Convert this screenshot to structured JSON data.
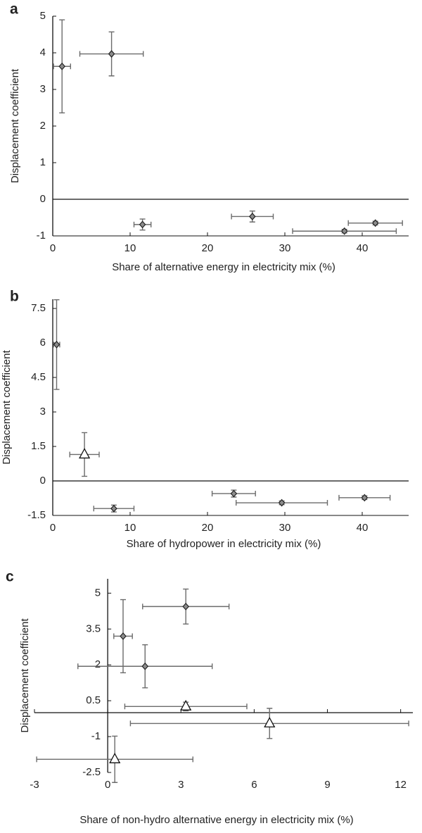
{
  "chart_data": [
    {
      "type": "scatter",
      "label": "a",
      "xlabel": "Share of alternative energy in electricity mix (%)",
      "ylabel": "Displacement coefficient",
      "xlim": [
        0,
        46
      ],
      "ylim": [
        -1,
        5
      ],
      "xticks": [
        0,
        10,
        20,
        30,
        40
      ],
      "yticks": [
        -1,
        0,
        1,
        2,
        3,
        4,
        5
      ],
      "series": [
        {
          "marker": "diamond",
          "color": "#8c8c8c",
          "x": [
            1.2,
            7.6,
            11.6,
            25.8,
            37.7,
            41.7
          ],
          "y": [
            3.63,
            3.97,
            -0.69,
            -0.47,
            -0.87,
            -0.65
          ],
          "xerr": [
            1.1,
            4.1,
            1.1,
            2.7,
            6.7,
            3.5
          ],
          "yerr": [
            1.27,
            0.6,
            0.15,
            0.15,
            0.05,
            0.05
          ]
        }
      ]
    },
    {
      "type": "scatter",
      "label": "b",
      "xlabel": "Share of hydropower in electricity mix (%)",
      "ylabel": "Displacement coefficient",
      "xlim": [
        0,
        46
      ],
      "ylim": [
        -1.5,
        7.9
      ],
      "xticks": [
        0,
        10,
        20,
        30,
        40
      ],
      "yticks": [
        -1.5,
        0,
        1.5,
        3,
        4.5,
        6,
        7.5
      ],
      "series": [
        {
          "marker": "diamond",
          "color": "#8c8c8c",
          "x": [
            0.5,
            7.9,
            23.4,
            29.6,
            40.3
          ],
          "y": [
            5.93,
            -1.2,
            -0.55,
            -0.95,
            -0.73
          ],
          "xerr": [
            0.4,
            2.6,
            2.8,
            5.9,
            3.3
          ],
          "yerr": [
            1.95,
            0.15,
            0.15,
            0.08,
            0.08
          ]
        },
        {
          "marker": "triangle",
          "color": "#ffffff",
          "x": [
            4.1
          ],
          "y": [
            1.15
          ],
          "xerr": [
            1.9
          ],
          "yerr": [
            0.95
          ]
        }
      ]
    },
    {
      "type": "scatter",
      "label": "c",
      "xlabel": "Share of non-hydro alternative energy in electricity mix (%)",
      "ylabel": "Displacement coefficient",
      "xlim": [
        -3,
        12.5
      ],
      "ylim": [
        -2.5,
        5.6
      ],
      "xticks": [
        -3,
        0,
        3,
        6,
        9,
        12
      ],
      "yticks": [
        -2.5,
        -1,
        0.5,
        2,
        3.5,
        5
      ],
      "series": [
        {
          "marker": "diamond",
          "color": "#8c8c8c",
          "x": [
            0.63,
            3.2,
            1.53
          ],
          "y": [
            3.2,
            4.44,
            1.94
          ],
          "xerr": [
            0.38,
            1.77,
            2.75
          ],
          "yerr": [
            1.53,
            0.73,
            0.9
          ]
        },
        {
          "marker": "triangle",
          "color": "#ffffff",
          "x": [
            3.2,
            6.63,
            0.29
          ],
          "y": [
            0.26,
            -0.45,
            -1.95
          ],
          "xerr": [
            2.5,
            5.7,
            3.2
          ],
          "yerr": [
            0.18,
            0.63,
            0.97
          ]
        }
      ]
    }
  ]
}
